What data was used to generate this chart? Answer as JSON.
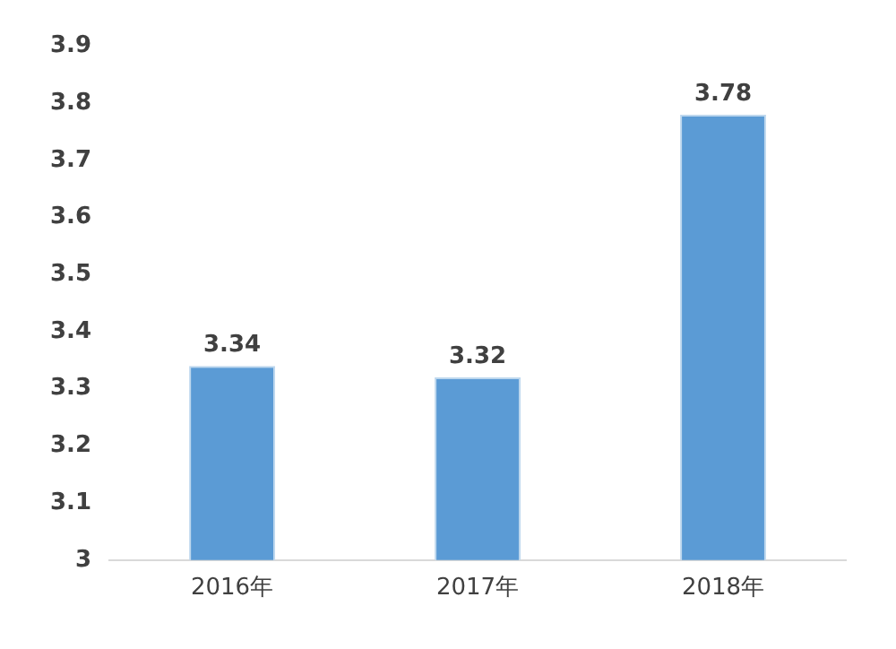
{
  "chart_data": {
    "type": "bar",
    "categories": [
      "2016年",
      "2017年",
      "2018年"
    ],
    "values": [
      3.34,
      3.32,
      3.78
    ],
    "color": "#5b9bd5",
    "ylim": [
      3,
      3.9
    ],
    "yticks": [
      3,
      3.1,
      3.2,
      3.3,
      3.4,
      3.5,
      3.6,
      3.7,
      3.8,
      3.9
    ],
    "grid": false,
    "data_labels": true,
    "legend": false
  }
}
